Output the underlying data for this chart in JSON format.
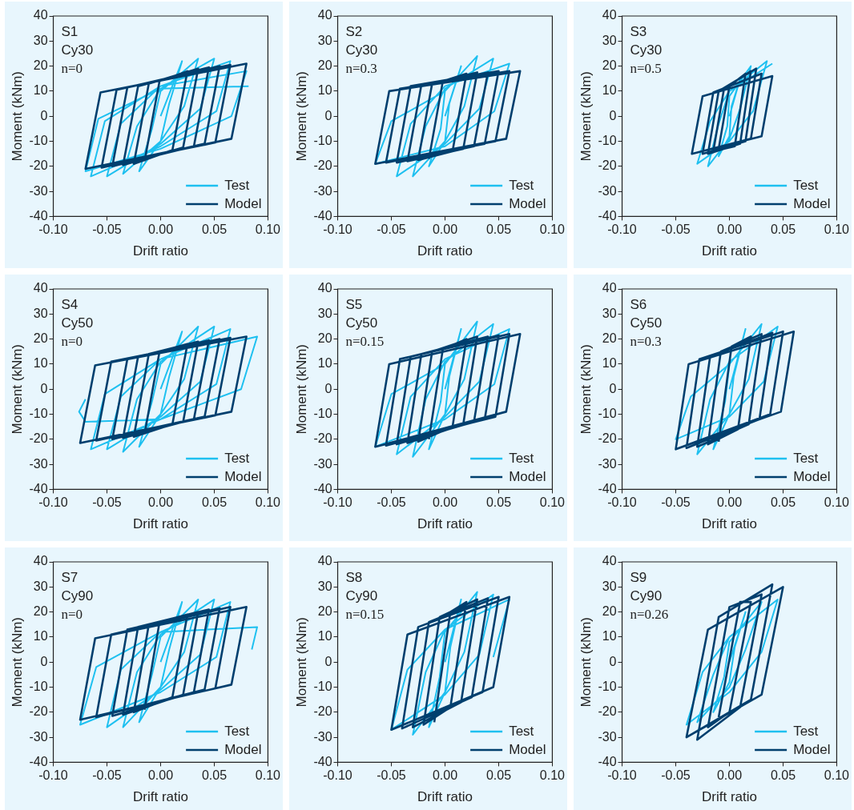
{
  "chart_data": [
    {
      "type": "line",
      "xlabel": "Drift ratio",
      "ylabel": "Moment (kNm)",
      "annotations": [
        "S1",
        "Cy30",
        "n=0"
      ],
      "legend": "bottom right",
      "xlim": [
        -0.1,
        0.1
      ],
      "xticks": [
        {
          "value": -0.1,
          "label": "-0.10"
        },
        {
          "value": -0.05,
          "label": "-0.05"
        },
        {
          "value": 0,
          "label": "0.00"
        },
        {
          "value": 0.05,
          "label": "0.05"
        },
        {
          "value": 0.1,
          "label": "0.10"
        }
      ],
      "ylim": [
        -40,
        40
      ],
      "yticks": [
        -40,
        -30,
        -20,
        -10,
        0,
        10,
        20,
        30,
        40
      ],
      "series": [
        {
          "name": "Test",
          "color": "#1ec0f0",
          "x": [
            0,
            0.02,
            0.008,
            0,
            -0.02,
            -0.008,
            0,
            0.035,
            0.022,
            0,
            -0.035,
            -0.022,
            0,
            0.05,
            0.037,
            0,
            -0.05,
            -0.037,
            0,
            0.065,
            0.052,
            0,
            -0.065,
            -0.052,
            0,
            0.08,
            0.066,
            0,
            -0.07,
            -0.058,
            0,
            0.082
          ],
          "values": [
            0,
            22,
            5,
            -10,
            -22,
            -5,
            10,
            23,
            4,
            -10,
            -23,
            -4,
            11,
            23,
            3,
            -11,
            -24,
            -3,
            12,
            22,
            2,
            -12,
            -24,
            -2,
            12,
            18,
            0,
            -13,
            -22,
            -1,
            11,
            12
          ]
        },
        {
          "name": "Model",
          "color": "#003f6e",
          "x": [
            -0.015,
            -0.001,
            0.025,
            0.011,
            -0.025,
            -0.011,
            0.035,
            0.021,
            -0.035,
            -0.021,
            0.045,
            0.031,
            -0.045,
            -0.031,
            0.055,
            0.041,
            -0.055,
            -0.041,
            0.065,
            0.051,
            -0.07,
            -0.056,
            0.08,
            0.066,
            -0.07
          ],
          "values": [
            -18,
            14,
            18,
            -13.5,
            -19,
            13,
            19,
            -12.5,
            -19.5,
            12,
            19.5,
            -12,
            -20,
            11.5,
            20,
            -11,
            -20.5,
            10.5,
            20.5,
            -10.5,
            -21,
            9.5,
            21,
            -9,
            -21
          ]
        }
      ]
    },
    {
      "type": "line",
      "xlabel": "Drift ratio",
      "ylabel": "Moment (kNm)",
      "annotations": [
        "S2",
        "Cy30",
        "n=0.3"
      ],
      "legend": "bottom right",
      "xlim": [
        -0.1,
        0.1
      ],
      "xticks": [
        {
          "value": -0.1,
          "label": "-0.10"
        },
        {
          "value": -0.05,
          "label": "-0.05"
        },
        {
          "value": 0,
          "label": "0.00"
        },
        {
          "value": 0.05,
          "label": "0.05"
        },
        {
          "value": 0.1,
          "label": "0.10"
        }
      ],
      "ylim": [
        -40,
        40
      ],
      "yticks": [
        -40,
        -30,
        -20,
        -10,
        0,
        10,
        20,
        30,
        40
      ],
      "series": [
        {
          "name": "Test",
          "color": "#1ec0f0",
          "x": [
            0,
            0.015,
            0.004,
            0,
            -0.015,
            -0.004,
            0,
            0.03,
            0.018,
            0,
            -0.03,
            -0.018,
            0,
            0.045,
            0.032,
            0,
            -0.045,
            -0.032,
            0,
            0.06,
            0.046,
            0,
            -0.065,
            -0.05,
            0
          ],
          "values": [
            0,
            20,
            5,
            -10,
            -20,
            -5,
            10,
            24,
            4,
            -10,
            -24,
            -4,
            11,
            23,
            3,
            -11,
            -24,
            -3,
            12,
            21,
            2,
            -12,
            -19,
            -2,
            10
          ]
        },
        {
          "name": "Model",
          "color": "#003f6e",
          "x": [
            -0.015,
            -0.002,
            0.02,
            0.007,
            -0.025,
            -0.012,
            0.03,
            0.017,
            -0.035,
            -0.022,
            0.04,
            0.027,
            -0.045,
            -0.032,
            0.05,
            0.037,
            -0.055,
            -0.042,
            0.06,
            0.047,
            -0.065,
            -0.052,
            0.07,
            0.057,
            -0.065
          ],
          "values": [
            -17,
            14,
            17,
            -14,
            -17.5,
            13,
            17.5,
            -13,
            -18,
            12.5,
            17.5,
            -12,
            -18.5,
            12,
            18,
            -11,
            -18.5,
            11,
            18,
            -10,
            -19,
            10,
            18,
            -9,
            -19
          ]
        }
      ]
    },
    {
      "type": "line",
      "xlabel": "Drift ratio",
      "ylabel": "Moment (kNm)",
      "annotations": [
        "S3",
        "Cy30",
        "n=0.5"
      ],
      "legend": "bottom right",
      "xlim": [
        -0.1,
        0.1
      ],
      "xticks": [
        {
          "value": -0.1,
          "label": "-0.10"
        },
        {
          "value": -0.05,
          "label": "-0.05"
        },
        {
          "value": 0,
          "label": "0.00"
        },
        {
          "value": 0.05,
          "label": "0.05"
        },
        {
          "value": 0.1,
          "label": "0.10"
        }
      ],
      "ylim": [
        -40,
        40
      ],
      "yticks": [
        -40,
        -30,
        -20,
        -10,
        0,
        10,
        20,
        30,
        40
      ],
      "series": [
        {
          "name": "Test",
          "color": "#1ec0f0",
          "x": [
            0,
            0.01,
            0.002,
            0,
            -0.01,
            -0.002,
            0,
            0.02,
            0.01,
            0,
            -0.02,
            -0.01,
            0,
            0.035,
            0.022,
            0,
            -0.03,
            -0.018,
            0,
            0.04
          ],
          "values": [
            0,
            15,
            4,
            -8,
            -16,
            -4,
            8,
            20,
            3,
            -9,
            -20,
            -3,
            10,
            22,
            2,
            -10,
            -19,
            -2,
            10,
            21
          ]
        },
        {
          "name": "Model",
          "color": "#003f6e",
          "x": [
            -0.01,
            0.0,
            0.015,
            0.005,
            -0.015,
            -0.005,
            0.02,
            0.01,
            -0.02,
            -0.01,
            0.025,
            0.015,
            -0.025,
            -0.015,
            0.03,
            0.02,
            -0.035,
            -0.025,
            0.04,
            0.03,
            -0.035
          ],
          "values": [
            -13,
            12,
            17,
            -12,
            -14,
            11,
            18,
            -11,
            -15,
            10,
            19,
            -10,
            -15,
            9.5,
            17,
            -9,
            -15,
            8,
            16,
            -8,
            -15
          ]
        }
      ]
    },
    {
      "type": "line",
      "xlabel": "Drift ratio",
      "ylabel": "Moment (kNm)",
      "annotations": [
        "S4",
        "Cy50",
        "n=0"
      ],
      "legend": "bottom right",
      "xlim": [
        -0.1,
        0.1
      ],
      "xticks": [
        {
          "value": -0.1,
          "label": "-0.10"
        },
        {
          "value": -0.05,
          "label": "-0.05"
        },
        {
          "value": 0,
          "label": "0.00"
        },
        {
          "value": 0.05,
          "label": "0.05"
        },
        {
          "value": 0.1,
          "label": "0.10"
        }
      ],
      "ylim": [
        -40,
        40
      ],
      "yticks": [
        -40,
        -30,
        -20,
        -10,
        0,
        10,
        20,
        30,
        40
      ],
      "series": [
        {
          "name": "Test",
          "color": "#1ec0f0",
          "x": [
            0,
            0.02,
            0.008,
            0,
            -0.02,
            -0.008,
            0,
            0.035,
            0.022,
            0,
            -0.035,
            -0.022,
            0,
            0.05,
            0.037,
            0,
            -0.05,
            -0.037,
            0,
            0.065,
            0.052,
            0,
            -0.065,
            -0.052,
            0,
            0.09,
            0.075,
            0,
            -0.07,
            -0.076,
            -0.07
          ],
          "values": [
            0,
            23,
            5,
            -10,
            -23,
            -5,
            10,
            25,
            4,
            -10,
            -25,
            -4,
            11,
            25,
            3,
            -11,
            -24,
            -3,
            12,
            24,
            2,
            -12,
            -24,
            -2,
            12,
            21,
            0,
            -12,
            -13,
            -9,
            -4
          ]
        },
        {
          "name": "Model",
          "color": "#003f6e",
          "x": [
            -0.015,
            -0.001,
            0.025,
            0.011,
            -0.025,
            -0.011,
            0.035,
            0.021,
            -0.035,
            -0.021,
            0.045,
            0.031,
            -0.045,
            -0.031,
            0.055,
            0.041,
            -0.06,
            -0.046,
            0.065,
            0.051,
            -0.075,
            -0.061,
            0.08,
            0.066,
            -0.075
          ],
          "values": [
            -18,
            15,
            18,
            -14,
            -19,
            14,
            19,
            -13,
            -19.5,
            13,
            19.5,
            -12,
            -20,
            12,
            20,
            -11,
            -20.5,
            11,
            20.5,
            -10.5,
            -21.5,
            9.5,
            21,
            -9,
            -21.5
          ]
        }
      ]
    },
    {
      "type": "line",
      "xlabel": "Drift ratio",
      "ylabel": "Moment (kNm)",
      "annotations": [
        "S5",
        "Cy50",
        "n=0.15"
      ],
      "legend": "bottom right",
      "xlim": [
        -0.1,
        0.1
      ],
      "xticks": [
        {
          "value": -0.1,
          "label": "-0.10"
        },
        {
          "value": -0.05,
          "label": "-0.05"
        },
        {
          "value": 0,
          "label": "0.00"
        },
        {
          "value": 0.05,
          "label": "0.05"
        },
        {
          "value": 0.1,
          "label": "0.10"
        }
      ],
      "ylim": [
        -40,
        40
      ],
      "yticks": [
        -40,
        -30,
        -20,
        -10,
        0,
        10,
        20,
        30,
        40
      ],
      "series": [
        {
          "name": "Test",
          "color": "#1ec0f0",
          "x": [
            0,
            0.015,
            0.004,
            0,
            -0.015,
            -0.004,
            0,
            0.03,
            0.018,
            0,
            -0.03,
            -0.018,
            0,
            0.045,
            0.032,
            0,
            -0.045,
            -0.032,
            0,
            0.06,
            0.046,
            0,
            -0.065,
            -0.05,
            0
          ],
          "values": [
            0,
            24,
            5,
            -10,
            -24,
            -5,
            10,
            27,
            4,
            -10,
            -27,
            -4,
            11,
            26,
            3,
            -11,
            -26,
            -3,
            12,
            24,
            2,
            -12,
            -23,
            -2,
            10
          ]
        },
        {
          "name": "Model",
          "color": "#003f6e",
          "x": [
            -0.015,
            -0.002,
            0.02,
            0.007,
            -0.025,
            -0.012,
            0.03,
            0.017,
            -0.035,
            -0.022,
            0.04,
            0.027,
            -0.045,
            -0.032,
            0.05,
            0.037,
            -0.055,
            -0.042,
            0.06,
            0.047,
            -0.065,
            -0.052,
            0.07,
            0.057,
            -0.065
          ],
          "values": [
            -20,
            16,
            20,
            -15,
            -21,
            15,
            21,
            -14,
            -21.5,
            14,
            21,
            -13,
            -22,
            13,
            21.5,
            -12,
            -22.5,
            12,
            22,
            -11,
            -23,
            10,
            22,
            -9,
            -23
          ]
        }
      ]
    },
    {
      "type": "line",
      "xlabel": "Drift ratio",
      "ylabel": "Moment (kNm)",
      "annotations": [
        "S6",
        "Cy50",
        "n=0.3"
      ],
      "legend": "bottom right",
      "xlim": [
        -0.1,
        0.1
      ],
      "xticks": [
        {
          "value": -0.1,
          "label": "-0.10"
        },
        {
          "value": -0.05,
          "label": "-0.05"
        },
        {
          "value": 0,
          "label": "0.00"
        },
        {
          "value": 0.05,
          "label": "0.05"
        },
        {
          "value": 0.1,
          "label": "0.10"
        }
      ],
      "ylim": [
        -40,
        40
      ],
      "yticks": [
        -40,
        -30,
        -20,
        -10,
        0,
        10,
        20,
        30,
        40
      ],
      "series": [
        {
          "name": "Test",
          "color": "#1ec0f0",
          "x": [
            0,
            0.015,
            0.004,
            0,
            -0.015,
            -0.004,
            0,
            0.03,
            0.018,
            0,
            -0.03,
            -0.018,
            0,
            0.045,
            0.032,
            0,
            -0.05,
            -0.036,
            0
          ],
          "values": [
            0,
            24,
            5,
            -10,
            -24,
            -5,
            10,
            26,
            4,
            -10,
            -26,
            -4,
            11,
            25,
            3,
            -11,
            -20,
            -3,
            10
          ]
        },
        {
          "name": "Model",
          "color": "#003f6e",
          "x": [
            -0.01,
            0.002,
            0.02,
            0.008,
            -0.02,
            -0.008,
            0.03,
            0.018,
            -0.03,
            -0.018,
            0.04,
            0.028,
            -0.04,
            -0.028,
            0.05,
            0.038,
            -0.05,
            -0.038,
            0.06,
            0.048,
            -0.05
          ],
          "values": [
            -21,
            17,
            21,
            -16,
            -22,
            15,
            22,
            -14,
            -23,
            13,
            22.5,
            -12,
            -23.5,
            12,
            23,
            -10,
            -24,
            10,
            23,
            -9,
            -24
          ]
        }
      ]
    },
    {
      "type": "line",
      "xlabel": "Drift ratio",
      "ylabel": "Moment (kNm)",
      "annotations": [
        "S7",
        "Cy90",
        "n=0"
      ],
      "legend": "bottom right",
      "xlim": [
        -0.1,
        0.1
      ],
      "xticks": [
        {
          "value": -0.1,
          "label": "-0.10"
        },
        {
          "value": -0.05,
          "label": "-0.05"
        },
        {
          "value": 0,
          "label": "0.00"
        },
        {
          "value": 0.05,
          "label": "0.05"
        },
        {
          "value": 0.1,
          "label": "0.10"
        }
      ],
      "ylim": [
        -40,
        40
      ],
      "yticks": [
        -40,
        -30,
        -20,
        -10,
        0,
        10,
        20,
        30,
        40
      ],
      "series": [
        {
          "name": "Test",
          "color": "#1ec0f0",
          "x": [
            0,
            0.02,
            0.008,
            0,
            -0.02,
            -0.008,
            0,
            0.035,
            0.022,
            0,
            -0.035,
            -0.022,
            0,
            0.05,
            0.037,
            0,
            -0.05,
            -0.037,
            0,
            0.065,
            0.052,
            0,
            -0.075,
            -0.06,
            0,
            0.09,
            0.085
          ],
          "values": [
            0,
            24,
            5,
            -10,
            -24,
            -5,
            10,
            25,
            4,
            -10,
            -26,
            -4,
            11,
            25,
            3,
            -11,
            -26,
            -3,
            12,
            24,
            2,
            -12,
            -25,
            -2,
            12,
            14,
            5
          ]
        },
        {
          "name": "Model",
          "color": "#003f6e",
          "x": [
            -0.015,
            -0.001,
            0.025,
            0.011,
            -0.025,
            -0.011,
            0.035,
            0.021,
            -0.035,
            -0.021,
            0.045,
            0.031,
            -0.045,
            -0.031,
            0.055,
            0.041,
            -0.06,
            -0.046,
            0.065,
            0.051,
            -0.075,
            -0.061,
            0.08,
            0.066,
            -0.075
          ],
          "values": [
            -19,
            16,
            19,
            -14,
            -20,
            15,
            20,
            -13,
            -21,
            14,
            21,
            -12,
            -21.5,
            13,
            21.5,
            -11,
            -22,
            11,
            22,
            -10.5,
            -23,
            9.5,
            22,
            -9,
            -23
          ]
        }
      ]
    },
    {
      "type": "line",
      "xlabel": "Drift ratio",
      "ylabel": "Moment (kNm)",
      "annotations": [
        "S8",
        "Cy90",
        "n=0.15"
      ],
      "legend": "bottom right",
      "xlim": [
        -0.1,
        0.1
      ],
      "xticks": [
        {
          "value": -0.1,
          "label": "-0.10"
        },
        {
          "value": -0.05,
          "label": "-0.05"
        },
        {
          "value": 0,
          "label": "0.00"
        },
        {
          "value": 0.05,
          "label": "0.05"
        },
        {
          "value": 0.1,
          "label": "0.10"
        }
      ],
      "ylim": [
        -40,
        40
      ],
      "yticks": [
        -40,
        -30,
        -20,
        -10,
        0,
        10,
        20,
        30,
        40
      ],
      "series": [
        {
          "name": "Test",
          "color": "#1ec0f0",
          "x": [
            0,
            0.015,
            0.005,
            0,
            -0.015,
            -0.005,
            0,
            0.03,
            0.018,
            0,
            -0.03,
            -0.018,
            0,
            0.045,
            0.032,
            0,
            -0.05,
            -0.035,
            0,
            0.06,
            0.045
          ],
          "values": [
            0,
            25,
            6,
            -12,
            -26,
            -6,
            12,
            28,
            4,
            -12,
            -29,
            -4,
            13,
            27,
            3,
            -13,
            -27,
            -3,
            13,
            25,
            2
          ]
        },
        {
          "name": "Model",
          "color": "#003f6e",
          "x": [
            -0.01,
            0.005,
            0.02,
            0.005,
            -0.02,
            -0.005,
            0.03,
            0.015,
            -0.03,
            -0.015,
            0.04,
            0.025,
            -0.04,
            -0.025,
            0.05,
            0.035,
            -0.05,
            -0.035,
            0.06,
            0.045,
            -0.05
          ],
          "values": [
            -24,
            20,
            24,
            -18,
            -25,
            18,
            25,
            -16,
            -26,
            16,
            25.5,
            -14,
            -26.5,
            14,
            26,
            -12,
            -27,
            11,
            26,
            -10,
            -27
          ]
        }
      ]
    },
    {
      "type": "line",
      "xlabel": "Drift ratio",
      "ylabel": "Moment (kNm)",
      "annotations": [
        "S9",
        "Cy90",
        "n=0.26"
      ],
      "legend": "bottom right",
      "xlim": [
        -0.1,
        0.1
      ],
      "xticks": [
        {
          "value": -0.1,
          "label": "-0.10"
        },
        {
          "value": -0.05,
          "label": "-0.05"
        },
        {
          "value": 0,
          "label": "0.00"
        },
        {
          "value": 0.05,
          "label": "0.05"
        },
        {
          "value": 0.1,
          "label": "0.10"
        }
      ],
      "ylim": [
        -40,
        40
      ],
      "yticks": [
        -40,
        -30,
        -20,
        -10,
        0,
        10,
        20,
        30,
        40
      ],
      "series": [
        {
          "name": "Test",
          "color": "#1ec0f0",
          "x": [
            0,
            0.015,
            0.005,
            0,
            -0.015,
            -0.005,
            0,
            0.03,
            0.015,
            0,
            -0.03,
            -0.015,
            0,
            0.045,
            0.03,
            0,
            -0.04,
            -0.025,
            0
          ],
          "values": [
            0,
            20,
            6,
            -8,
            -20,
            -6,
            8,
            24,
            5,
            -10,
            -24,
            -5,
            10,
            25,
            4,
            -12,
            -25,
            -4,
            10
          ]
        },
        {
          "name": "Model",
          "color": "#003f6e",
          "x": [
            -0.01,
            0.01,
            0.02,
            0.0,
            -0.02,
            0.0,
            0.03,
            0.01,
            -0.03,
            -0.01,
            0.04,
            0.02,
            -0.04,
            -0.02,
            0.05,
            0.03,
            -0.04
          ],
          "values": [
            -22,
            24,
            24,
            -20,
            -26,
            22,
            27,
            -18,
            -31,
            18,
            31,
            -15,
            -30,
            13,
            30,
            -13,
            -30
          ]
        }
      ]
    }
  ]
}
